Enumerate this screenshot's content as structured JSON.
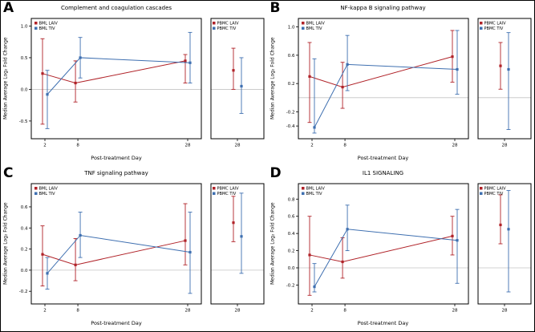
{
  "figure": {
    "xlabel": "Post-treatment Day",
    "ylabel": "Median Average Log₂ Fold Change",
    "colors": {
      "laiv": "#b02228",
      "tiv": "#3e6fb0",
      "ref": "#c4c4c4",
      "axis": "#000000"
    },
    "legend_main": [
      "BML LAIV",
      "BML TIV"
    ],
    "legend_side": [
      "PBMC LAIV",
      "PBMC TIV"
    ]
  },
  "chart_data": [
    {
      "panel": "A",
      "type": "line",
      "title": "Complement and coagulation cascades",
      "xlabel": "Post-treatment Day",
      "ylabel": "Median Average Log₂ Fold Change",
      "x": [
        2,
        8,
        28
      ],
      "ylim": [
        -0.78,
        1.12
      ],
      "yticks": [
        -0.5,
        0.0,
        0.5,
        1.0
      ],
      "refline": 0.0,
      "legend_position": "top-left",
      "series": [
        {
          "name": "BML LAIV",
          "color": "laiv",
          "values": [
            0.25,
            0.1,
            0.45
          ],
          "err_lo": [
            -0.55,
            -0.2,
            0.1
          ],
          "err_hi": [
            0.8,
            0.45,
            0.55
          ]
        },
        {
          "name": "BML TIV",
          "color": "tiv",
          "values": [
            -0.08,
            0.5,
            0.42
          ],
          "err_lo": [
            -0.62,
            0.18,
            0.1
          ],
          "err_hi": [
            0.3,
            0.82,
            0.9
          ]
        }
      ],
      "side": {
        "x": [
          28
        ],
        "series": [
          {
            "name": "PBMC LAIV",
            "color": "laiv",
            "values": [
              0.3
            ],
            "err_lo": [
              0.0
            ],
            "err_hi": [
              0.65
            ]
          },
          {
            "name": "PBMC TIV",
            "color": "tiv",
            "values": [
              0.05
            ],
            "err_lo": [
              -0.38
            ],
            "err_hi": [
              0.5
            ]
          }
        ]
      }
    },
    {
      "panel": "B",
      "type": "line",
      "title": "NF-kappa B signaling pathway",
      "xlabel": "Post-treatment Day",
      "ylabel": "Median Average Log₂ Fold Change",
      "x": [
        2,
        8,
        28
      ],
      "ylim": [
        -0.58,
        1.12
      ],
      "yticks": [
        -0.4,
        -0.2,
        0.2,
        0.6,
        1.0
      ],
      "refline": 0.0,
      "legend_position": "top-left",
      "series": [
        {
          "name": "BML LAIV",
          "color": "laiv",
          "values": [
            0.3,
            0.15,
            0.58
          ],
          "err_lo": [
            -0.35,
            -0.15,
            0.22
          ],
          "err_hi": [
            0.78,
            0.5,
            0.95
          ]
        },
        {
          "name": "BML TIV",
          "color": "tiv",
          "values": [
            -0.42,
            0.47,
            0.4
          ],
          "err_lo": [
            -0.5,
            0.1,
            0.05
          ],
          "err_hi": [
            0.55,
            0.88,
            0.95
          ]
        }
      ],
      "side": {
        "x": [
          28
        ],
        "series": [
          {
            "name": "PBMC LAIV",
            "color": "laiv",
            "values": [
              0.45
            ],
            "err_lo": [
              0.12
            ],
            "err_hi": [
              0.78
            ]
          },
          {
            "name": "PBMC TIV",
            "color": "tiv",
            "values": [
              0.4
            ],
            "err_lo": [
              -0.45
            ],
            "err_hi": [
              0.92
            ]
          }
        ]
      }
    },
    {
      "panel": "C",
      "type": "line",
      "title": "TNF signaling pathway",
      "xlabel": "Post-treatment Day",
      "ylabel": "Median Average Log₂ Fold Change",
      "x": [
        2,
        8,
        28
      ],
      "ylim": [
        -0.32,
        0.82
      ],
      "yticks": [
        -0.2,
        0.0,
        0.2,
        0.4,
        0.6
      ],
      "refline": 0.0,
      "legend_position": "top-left",
      "series": [
        {
          "name": "BML LAIV",
          "color": "laiv",
          "values": [
            0.15,
            0.05,
            0.28
          ],
          "err_lo": [
            -0.15,
            -0.1,
            0.05
          ],
          "err_hi": [
            0.42,
            0.3,
            0.63
          ]
        },
        {
          "name": "BML TIV",
          "color": "tiv",
          "values": [
            -0.03,
            0.33,
            0.17
          ],
          "err_lo": [
            -0.18,
            0.12,
            -0.22
          ],
          "err_hi": [
            0.12,
            0.55,
            0.55
          ]
        }
      ],
      "side": {
        "x": [
          28
        ],
        "series": [
          {
            "name": "PBMC LAIV",
            "color": "laiv",
            "values": [
              0.45
            ],
            "err_lo": [
              0.27
            ],
            "err_hi": [
              0.7
            ]
          },
          {
            "name": "PBMC TIV",
            "color": "tiv",
            "values": [
              0.32
            ],
            "err_lo": [
              -0.03
            ],
            "err_hi": [
              0.73
            ]
          }
        ]
      }
    },
    {
      "panel": "D",
      "type": "line",
      "title": "IL1 SIGNALING",
      "xlabel": "Post-treatment Day",
      "ylabel": "Median Average Log₂ Fold Change",
      "x": [
        2,
        8,
        28
      ],
      "ylim": [
        -0.42,
        0.98
      ],
      "yticks": [
        -0.2,
        0.0,
        0.2,
        0.4,
        0.6,
        0.8
      ],
      "refline": 0.0,
      "legend_position": "top-left",
      "series": [
        {
          "name": "BML LAIV",
          "color": "laiv",
          "values": [
            0.15,
            0.07,
            0.37
          ],
          "err_lo": [
            -0.32,
            -0.12,
            0.15
          ],
          "err_hi": [
            0.6,
            0.35,
            0.6
          ]
        },
        {
          "name": "BML TIV",
          "color": "tiv",
          "values": [
            -0.22,
            0.45,
            0.32
          ],
          "err_lo": [
            -0.28,
            0.2,
            -0.18
          ],
          "err_hi": [
            0.05,
            0.73,
            0.68
          ]
        }
      ],
      "side": {
        "x": [
          28
        ],
        "series": [
          {
            "name": "PBMC LAIV",
            "color": "laiv",
            "values": [
              0.5
            ],
            "err_lo": [
              0.28
            ],
            "err_hi": [
              0.85
            ]
          },
          {
            "name": "PBMC TIV",
            "color": "tiv",
            "values": [
              0.45
            ],
            "err_lo": [
              -0.28
            ],
            "err_hi": [
              0.9
            ]
          }
        ]
      }
    }
  ]
}
